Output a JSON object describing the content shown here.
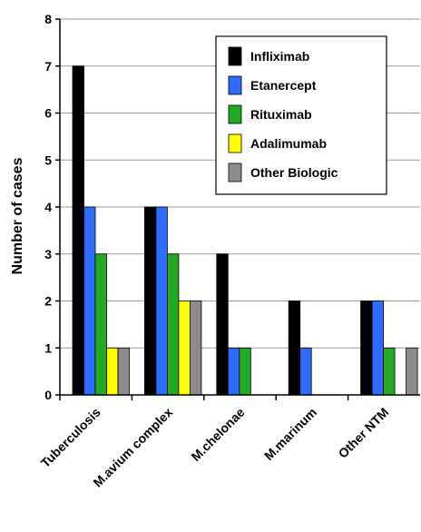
{
  "chart_data": {
    "type": "bar",
    "title": "",
    "xlabel": "",
    "ylabel": "Number of cases",
    "ylim": [
      0,
      8
    ],
    "yticks": [
      0,
      1,
      2,
      3,
      4,
      5,
      6,
      7,
      8
    ],
    "grid": true,
    "legend_position": "top-right",
    "categories": [
      "Tuberculosis",
      "M.avium complex",
      "M.chelonae",
      "M.marinum",
      "Other NTM"
    ],
    "series": [
      {
        "name": "Infliximab",
        "color": "#000000",
        "values": [
          7,
          4,
          3,
          2,
          2
        ]
      },
      {
        "name": "Etanercept",
        "color": "#2e6bff",
        "values": [
          4,
          4,
          1,
          1,
          2
        ]
      },
      {
        "name": "Rituximab",
        "color": "#22aa22",
        "values": [
          3,
          3,
          1,
          0,
          1
        ]
      },
      {
        "name": "Adalimumab",
        "color": "#ffff00",
        "values": [
          1,
          2,
          0,
          0,
          0
        ]
      },
      {
        "name": "Other Biologic",
        "color": "#8c8c8c",
        "values": [
          1,
          2,
          0,
          0,
          1
        ]
      }
    ]
  }
}
